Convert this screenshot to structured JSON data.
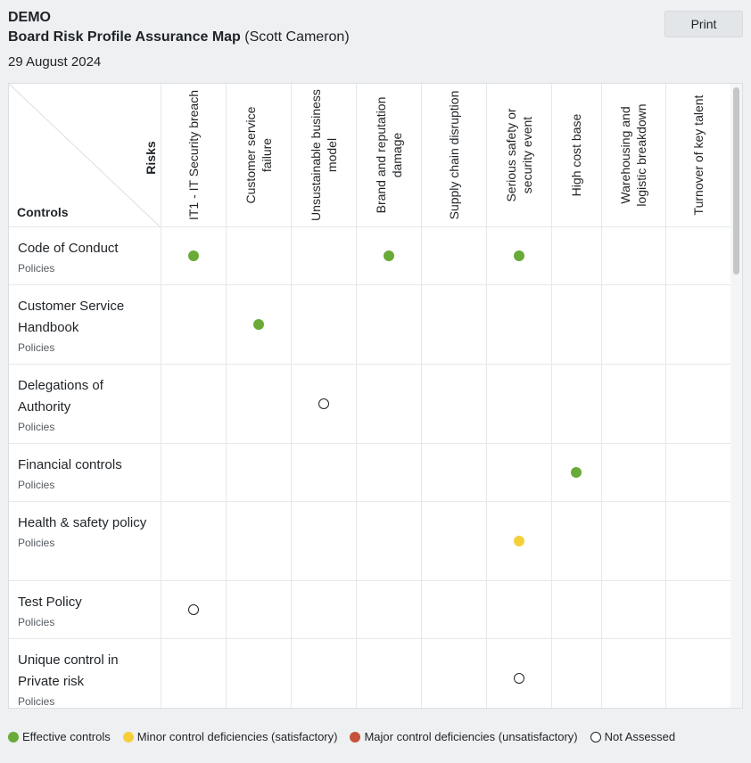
{
  "header": {
    "org": "DEMO",
    "title": "Board Risk Profile Assurance Map",
    "owner": "(Scott Cameron)",
    "date": "29 August 2024",
    "print_label": "Print"
  },
  "corner": {
    "risks_label": "Risks",
    "controls_label": "Controls"
  },
  "risks": [
    "IT1 - IT Security breach",
    "Customer service failure",
    "Unsustainable business model",
    "Brand and reputation damage",
    "Supply chain disruption",
    "Serious safety or security event",
    "High cost base",
    "Warehousing and logistic breakdown",
    "Turnover of key talent"
  ],
  "controls": [
    {
      "name": "Code of Conduct",
      "type": "Policies",
      "ratings": [
        "effective",
        "",
        "",
        "effective",
        "",
        "effective",
        "",
        "",
        ""
      ]
    },
    {
      "name": "Customer Service Handbook",
      "type": "Policies",
      "ratings": [
        "",
        "effective",
        "",
        "",
        "",
        "",
        "",
        "",
        ""
      ]
    },
    {
      "name": "Delegations of Authority",
      "type": "Policies",
      "ratings": [
        "",
        "",
        "none",
        "",
        "",
        "",
        "",
        "",
        ""
      ]
    },
    {
      "name": "Financial controls",
      "type": "Policies",
      "ratings": [
        "",
        "",
        "",
        "",
        "",
        "",
        "effective",
        "",
        ""
      ]
    },
    {
      "name": "Health & safety policy",
      "type": "Policies",
      "ratings": [
        "",
        "",
        "",
        "",
        "",
        "minor",
        "",
        "",
        ""
      ]
    },
    {
      "name": "Test Policy",
      "type": "Policies",
      "ratings": [
        "none",
        "",
        "",
        "",
        "",
        "",
        "",
        "",
        ""
      ]
    },
    {
      "name": "Unique control in Private risk",
      "type": "Policies",
      "ratings": [
        "",
        "",
        "",
        "",
        "",
        "none",
        "",
        "",
        ""
      ]
    }
  ],
  "legend": [
    {
      "key": "effective",
      "label": "Effective controls",
      "color": "#6aaa38"
    },
    {
      "key": "minor",
      "label": "Minor control deficiencies (satisfactory)",
      "color": "#f5cf3a"
    },
    {
      "key": "major",
      "label": "Major control deficiencies (unsatisfactory)",
      "color": "#c5523b"
    },
    {
      "key": "none",
      "label": "Not Assessed",
      "color": "#ffffff"
    }
  ]
}
